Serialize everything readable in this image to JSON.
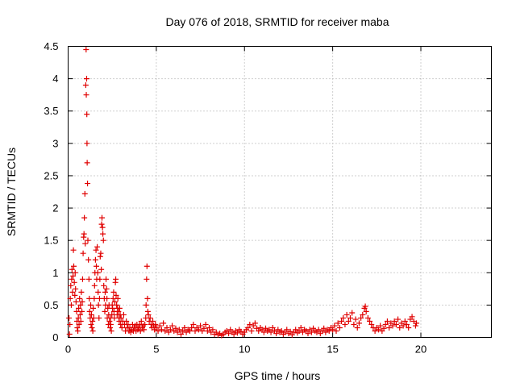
{
  "chart_data": {
    "type": "scatter",
    "title": "Day 076 of 2018, SRMTID for receiver maba",
    "xlabel": "GPS time / hours",
    "ylabel": "SRMTID / TECUs",
    "xlim": [
      0,
      24
    ],
    "ylim": [
      0,
      4.5
    ],
    "xticks": [
      0,
      5,
      10,
      15,
      20
    ],
    "yticks": [
      0,
      0.5,
      1,
      1.5,
      2,
      2.5,
      3,
      3.5,
      4,
      4.5
    ],
    "xtick_labels": [
      "0",
      "5",
      "10",
      "15",
      "20"
    ],
    "ytick_labels": [
      "0",
      "0.5",
      "1",
      "1.5",
      "2",
      "2.5",
      "3",
      "3.5",
      "4",
      "4.5"
    ],
    "grid": true,
    "marker": "+",
    "series_color": "#e00000",
    "series": [
      {
        "name": "SRMTID",
        "points": [
          [
            0.05,
            0.3
          ],
          [
            0.08,
            0.05
          ],
          [
            0.1,
            0.2
          ],
          [
            0.12,
            0.6
          ],
          [
            0.15,
            0.8
          ],
          [
            0.18,
            0.5
          ],
          [
            0.2,
            0.9
          ],
          [
            0.22,
            1.05
          ],
          [
            0.25,
            0.7
          ],
          [
            0.28,
            0.95
          ],
          [
            0.3,
            1.35
          ],
          [
            0.32,
            1.1
          ],
          [
            0.35,
            0.85
          ],
          [
            0.38,
            0.65
          ],
          [
            0.4,
            1.0
          ],
          [
            0.42,
            0.75
          ],
          [
            0.45,
            0.55
          ],
          [
            0.48,
            0.4
          ],
          [
            0.5,
            0.25
          ],
          [
            0.52,
            0.15
          ],
          [
            0.55,
            0.1
          ],
          [
            0.58,
            0.3
          ],
          [
            0.6,
            0.45
          ],
          [
            0.62,
            0.2
          ],
          [
            0.65,
            0.6
          ],
          [
            0.68,
            0.35
          ],
          [
            0.7,
            0.5
          ],
          [
            0.72,
            0.25
          ],
          [
            0.75,
            0.7
          ],
          [
            0.78,
            0.4
          ],
          [
            0.8,
            0.55
          ],
          [
            0.82,
            0.9
          ],
          [
            0.85,
            1.3
          ],
          [
            0.88,
            1.55
          ],
          [
            0.9,
            1.6
          ],
          [
            0.92,
            1.85
          ],
          [
            0.95,
            2.22
          ],
          [
            0.97,
            1.45
          ],
          [
            1.0,
            3.9
          ],
          [
            1.02,
            4.45
          ],
          [
            1.03,
            3.75
          ],
          [
            1.05,
            4.0
          ],
          [
            1.06,
            3.45
          ],
          [
            1.07,
            3.0
          ],
          [
            1.08,
            2.7
          ],
          [
            1.1,
            2.38
          ],
          [
            1.12,
            1.5
          ],
          [
            1.15,
            1.2
          ],
          [
            1.18,
            0.9
          ],
          [
            1.2,
            0.6
          ],
          [
            1.22,
            0.4
          ],
          [
            1.25,
            0.3
          ],
          [
            1.28,
            0.5
          ],
          [
            1.3,
            0.2
          ],
          [
            1.32,
            0.35
          ],
          [
            1.35,
            0.15
          ],
          [
            1.38,
            0.25
          ],
          [
            1.4,
            0.1
          ],
          [
            1.42,
            0.45
          ],
          [
            1.45,
            0.3
          ],
          [
            1.48,
            0.6
          ],
          [
            1.5,
            0.8
          ],
          [
            1.52,
            1.0
          ],
          [
            1.55,
            1.2
          ],
          [
            1.58,
            1.35
          ],
          [
            1.6,
            1.1
          ],
          [
            1.62,
            0.9
          ],
          [
            1.65,
            1.4
          ],
          [
            1.68,
            1.0
          ],
          [
            1.7,
            0.7
          ],
          [
            1.72,
            0.5
          ],
          [
            1.75,
            0.3
          ],
          [
            1.78,
            0.6
          ],
          [
            1.8,
            0.9
          ],
          [
            1.82,
            1.25
          ],
          [
            1.85,
            1.3
          ],
          [
            1.88,
            1.05
          ],
          [
            1.9,
            1.75
          ],
          [
            1.92,
            1.85
          ],
          [
            1.95,
            1.7
          ],
          [
            1.97,
            1.6
          ],
          [
            2.0,
            1.5
          ],
          [
            2.02,
            0.8
          ],
          [
            2.05,
            0.6
          ],
          [
            2.08,
            0.4
          ],
          [
            2.1,
            0.7
          ],
          [
            2.12,
            0.5
          ],
          [
            2.15,
            0.9
          ],
          [
            2.18,
            0.75
          ],
          [
            2.2,
            0.6
          ],
          [
            2.22,
            0.3
          ],
          [
            2.25,
            0.45
          ],
          [
            2.28,
            0.2
          ],
          [
            2.3,
            0.35
          ],
          [
            2.32,
            0.5
          ],
          [
            2.35,
            0.25
          ],
          [
            2.38,
            0.15
          ],
          [
            2.4,
            0.3
          ],
          [
            2.42,
            0.2
          ],
          [
            2.45,
            0.1
          ],
          [
            2.48,
            0.35
          ],
          [
            2.5,
            0.5
          ],
          [
            2.52,
            0.45
          ],
          [
            2.55,
            0.6
          ],
          [
            2.58,
            0.7
          ],
          [
            2.6,
            0.4
          ],
          [
            2.62,
            0.3
          ],
          [
            2.65,
            0.55
          ],
          [
            2.68,
            0.85
          ],
          [
            2.7,
            0.9
          ],
          [
            2.72,
            0.65
          ],
          [
            2.75,
            0.5
          ],
          [
            2.78,
            0.35
          ],
          [
            2.8,
            0.45
          ],
          [
            2.82,
            0.6
          ],
          [
            2.85,
            0.4
          ],
          [
            2.88,
            0.3
          ],
          [
            2.9,
            0.25
          ],
          [
            2.92,
            0.45
          ],
          [
            2.95,
            0.35
          ],
          [
            2.98,
            0.2
          ],
          [
            3.0,
            0.3
          ],
          [
            3.05,
            0.15
          ],
          [
            3.1,
            0.25
          ],
          [
            3.15,
            0.35
          ],
          [
            3.2,
            0.2
          ],
          [
            3.25,
            0.1
          ],
          [
            3.3,
            0.25
          ],
          [
            3.35,
            0.15
          ],
          [
            3.4,
            0.2
          ],
          [
            3.45,
            0.1
          ],
          [
            3.5,
            0.15
          ],
          [
            3.55,
            0.08
          ],
          [
            3.6,
            0.12
          ],
          [
            3.65,
            0.2
          ],
          [
            3.7,
            0.1
          ],
          [
            3.75,
            0.15
          ],
          [
            3.8,
            0.18
          ],
          [
            3.85,
            0.1
          ],
          [
            3.9,
            0.2
          ],
          [
            3.95,
            0.12
          ],
          [
            4.0,
            0.15
          ],
          [
            4.05,
            0.2
          ],
          [
            4.1,
            0.1
          ],
          [
            4.15,
            0.25
          ],
          [
            4.2,
            0.15
          ],
          [
            4.25,
            0.18
          ],
          [
            4.3,
            0.12
          ],
          [
            4.35,
            0.2
          ],
          [
            4.4,
            0.3
          ],
          [
            4.42,
            0.5
          ],
          [
            4.45,
            0.9
          ],
          [
            4.47,
            1.1
          ],
          [
            4.5,
            0.6
          ],
          [
            4.52,
            0.4
          ],
          [
            4.55,
            0.35
          ],
          [
            4.6,
            0.25
          ],
          [
            4.65,
            0.3
          ],
          [
            4.7,
            0.2
          ],
          [
            4.75,
            0.15
          ],
          [
            4.8,
            0.25
          ],
          [
            4.85,
            0.18
          ],
          [
            4.9,
            0.12
          ],
          [
            4.95,
            0.2
          ],
          [
            5.0,
            0.15
          ],
          [
            5.1,
            0.1
          ],
          [
            5.2,
            0.18
          ],
          [
            5.3,
            0.12
          ],
          [
            5.4,
            0.22
          ],
          [
            5.5,
            0.1
          ],
          [
            5.6,
            0.15
          ],
          [
            5.7,
            0.08
          ],
          [
            5.8,
            0.12
          ],
          [
            5.9,
            0.18
          ],
          [
            6.0,
            0.1
          ],
          [
            6.1,
            0.14
          ],
          [
            6.2,
            0.08
          ],
          [
            6.3,
            0.12
          ],
          [
            6.4,
            0.05
          ],
          [
            6.5,
            0.1
          ],
          [
            6.6,
            0.15
          ],
          [
            6.7,
            0.08
          ],
          [
            6.8,
            0.12
          ],
          [
            6.9,
            0.1
          ],
          [
            7.0,
            0.15
          ],
          [
            7.1,
            0.2
          ],
          [
            7.2,
            0.1
          ],
          [
            7.3,
            0.15
          ],
          [
            7.4,
            0.12
          ],
          [
            7.5,
            0.18
          ],
          [
            7.6,
            0.1
          ],
          [
            7.7,
            0.14
          ],
          [
            7.8,
            0.2
          ],
          [
            7.9,
            0.1
          ],
          [
            8.0,
            0.15
          ],
          [
            8.1,
            0.08
          ],
          [
            8.2,
            0.12
          ],
          [
            8.3,
            0.05
          ],
          [
            8.4,
            0.08
          ],
          [
            8.5,
            0.04
          ],
          [
            8.6,
            0.06
          ],
          [
            8.7,
            0.03
          ],
          [
            8.8,
            0.05
          ],
          [
            8.9,
            0.08
          ],
          [
            9.0,
            0.1
          ],
          [
            9.1,
            0.06
          ],
          [
            9.2,
            0.12
          ],
          [
            9.3,
            0.08
          ],
          [
            9.4,
            0.05
          ],
          [
            9.5,
            0.1
          ],
          [
            9.6,
            0.07
          ],
          [
            9.7,
            0.12
          ],
          [
            9.8,
            0.09
          ],
          [
            9.9,
            0.05
          ],
          [
            10.0,
            0.08
          ],
          [
            10.1,
            0.12
          ],
          [
            10.2,
            0.15
          ],
          [
            10.3,
            0.2
          ],
          [
            10.4,
            0.1
          ],
          [
            10.5,
            0.18
          ],
          [
            10.6,
            0.22
          ],
          [
            10.7,
            0.14
          ],
          [
            10.8,
            0.1
          ],
          [
            10.9,
            0.15
          ],
          [
            11.0,
            0.12
          ],
          [
            11.1,
            0.08
          ],
          [
            11.2,
            0.14
          ],
          [
            11.3,
            0.1
          ],
          [
            11.4,
            0.12
          ],
          [
            11.5,
            0.08
          ],
          [
            11.6,
            0.15
          ],
          [
            11.7,
            0.1
          ],
          [
            11.8,
            0.06
          ],
          [
            11.9,
            0.12
          ],
          [
            12.0,
            0.08
          ],
          [
            12.1,
            0.1
          ],
          [
            12.2,
            0.05
          ],
          [
            12.3,
            0.08
          ],
          [
            12.4,
            0.12
          ],
          [
            12.5,
            0.06
          ],
          [
            12.6,
            0.09
          ],
          [
            12.7,
            0.04
          ],
          [
            12.8,
            0.08
          ],
          [
            12.9,
            0.12
          ],
          [
            13.0,
            0.07
          ],
          [
            13.1,
            0.1
          ],
          [
            13.2,
            0.15
          ],
          [
            13.3,
            0.08
          ],
          [
            13.4,
            0.12
          ],
          [
            13.5,
            0.1
          ],
          [
            13.6,
            0.06
          ],
          [
            13.7,
            0.12
          ],
          [
            13.8,
            0.08
          ],
          [
            13.9,
            0.14
          ],
          [
            14.0,
            0.1
          ],
          [
            14.1,
            0.08
          ],
          [
            14.2,
            0.12
          ],
          [
            14.3,
            0.06
          ],
          [
            14.4,
            0.1
          ],
          [
            14.5,
            0.14
          ],
          [
            14.6,
            0.08
          ],
          [
            14.7,
            0.12
          ],
          [
            14.8,
            0.1
          ],
          [
            14.9,
            0.15
          ],
          [
            15.0,
            0.12
          ],
          [
            15.1,
            0.18
          ],
          [
            15.2,
            0.1
          ],
          [
            15.3,
            0.22
          ],
          [
            15.4,
            0.15
          ],
          [
            15.5,
            0.25
          ],
          [
            15.6,
            0.3
          ],
          [
            15.7,
            0.2
          ],
          [
            15.8,
            0.35
          ],
          [
            15.9,
            0.25
          ],
          [
            16.0,
            0.3
          ],
          [
            16.1,
            0.38
          ],
          [
            16.2,
            0.2
          ],
          [
            16.3,
            0.28
          ],
          [
            16.4,
            0.15
          ],
          [
            16.5,
            0.22
          ],
          [
            16.6,
            0.3
          ],
          [
            16.7,
            0.35
          ],
          [
            16.8,
            0.45
          ],
          [
            16.85,
            0.48
          ],
          [
            16.9,
            0.4
          ],
          [
            17.0,
            0.3
          ],
          [
            17.1,
            0.25
          ],
          [
            17.2,
            0.2
          ],
          [
            17.3,
            0.15
          ],
          [
            17.4,
            0.1
          ],
          [
            17.5,
            0.15
          ],
          [
            17.6,
            0.12
          ],
          [
            17.7,
            0.18
          ],
          [
            17.8,
            0.1
          ],
          [
            17.9,
            0.14
          ],
          [
            18.0,
            0.2
          ],
          [
            18.1,
            0.25
          ],
          [
            18.2,
            0.15
          ],
          [
            18.3,
            0.22
          ],
          [
            18.4,
            0.18
          ],
          [
            18.5,
            0.25
          ],
          [
            18.6,
            0.2
          ],
          [
            18.7,
            0.28
          ],
          [
            18.8,
            0.15
          ],
          [
            18.9,
            0.22
          ],
          [
            19.0,
            0.18
          ],
          [
            19.1,
            0.25
          ],
          [
            19.2,
            0.2
          ],
          [
            19.3,
            0.15
          ],
          [
            19.4,
            0.28
          ],
          [
            19.5,
            0.32
          ],
          [
            19.6,
            0.25
          ],
          [
            19.7,
            0.18
          ],
          [
            19.75,
            0.22
          ]
        ]
      }
    ]
  }
}
